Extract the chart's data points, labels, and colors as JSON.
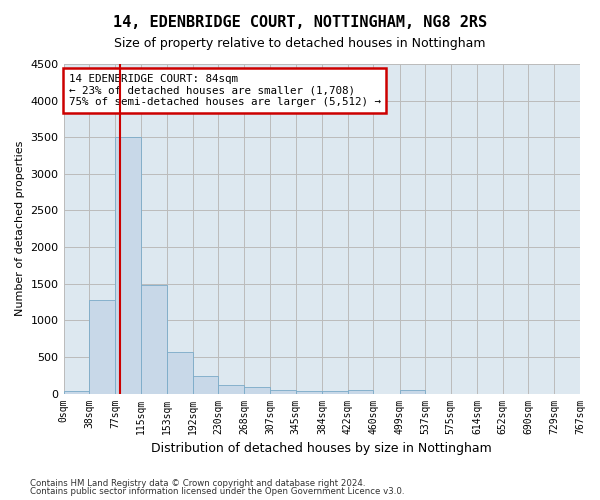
{
  "title": "14, EDENBRIDGE COURT, NOTTINGHAM, NG8 2RS",
  "subtitle": "Size of property relative to detached houses in Nottingham",
  "xlabel": "Distribution of detached houses by size in Nottingham",
  "ylabel": "Number of detached properties",
  "bar_color": "#c8d8e8",
  "bar_edge_color": "#7aaac8",
  "background_color": "#ffffff",
  "axes_bg_color": "#dde8f0",
  "grid_color": "#bbbbbb",
  "vline_color": "#cc0000",
  "annotation_text": "14 EDENBRIDGE COURT: 84sqm\n← 23% of detached houses are smaller (1,708)\n75% of semi-detached houses are larger (5,512) →",
  "annotation_box_color": "#ffffff",
  "annotation_box_edge": "#cc0000",
  "bin_edges": [
    0,
    38,
    77,
    115,
    153,
    192,
    230,
    268,
    307,
    345,
    384,
    422,
    460,
    499,
    537,
    575,
    614,
    652,
    690,
    729,
    767
  ],
  "bin_labels": [
    "0sqm",
    "38sqm",
    "77sqm",
    "115sqm",
    "153sqm",
    "192sqm",
    "230sqm",
    "268sqm",
    "307sqm",
    "345sqm",
    "384sqm",
    "422sqm",
    "460sqm",
    "499sqm",
    "537sqm",
    "575sqm",
    "614sqm",
    "652sqm",
    "690sqm",
    "729sqm",
    "767sqm"
  ],
  "values": [
    40,
    1280,
    3510,
    1480,
    570,
    240,
    115,
    85,
    55,
    40,
    30,
    50,
    0,
    55,
    0,
    0,
    0,
    0,
    0,
    0
  ],
  "property_size_sqm": 84,
  "ylim": [
    0,
    4500
  ],
  "yticks": [
    0,
    500,
    1000,
    1500,
    2000,
    2500,
    3000,
    3500,
    4000,
    4500
  ],
  "footer_line1": "Contains HM Land Registry data © Crown copyright and database right 2024.",
  "footer_line2": "Contains public sector information licensed under the Open Government Licence v3.0."
}
